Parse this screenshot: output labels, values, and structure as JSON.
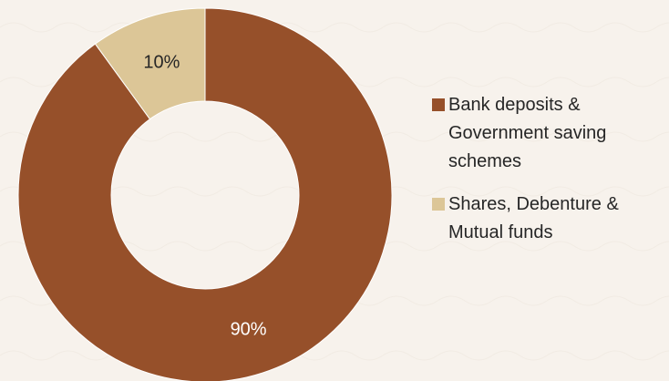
{
  "chart_data": {
    "type": "pie",
    "variant": "donut",
    "title": "",
    "categories": [
      "Bank deposits & Government saving schemes",
      "Shares, Debenture & Mutual funds"
    ],
    "values": [
      90,
      10
    ],
    "data_labels": [
      "90%",
      "10%"
    ],
    "colors": [
      "#96502a",
      "#dcc697"
    ],
    "legend_position": "right"
  }
}
